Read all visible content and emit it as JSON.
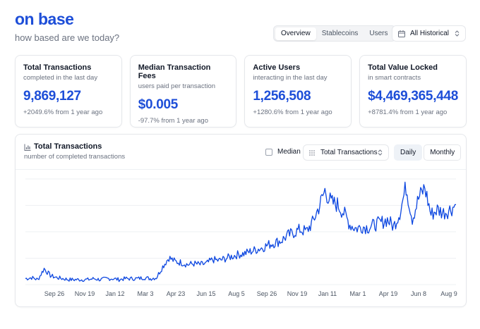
{
  "header": {
    "brand": "on base",
    "tagline": "how based are we today?"
  },
  "view_tabs": [
    {
      "label": "Overview",
      "active": true
    },
    {
      "label": "Stablecoins",
      "active": false
    },
    {
      "label": "Users",
      "active": false
    }
  ],
  "range_select": {
    "label": "All Historical",
    "icon": "calendar-icon"
  },
  "stats": [
    {
      "title": "Total Transactions",
      "subtitle": "completed in the last day",
      "value": "9,869,127",
      "delta": "+2049.6% from 1 year ago"
    },
    {
      "title": "Median Transaction Fees",
      "subtitle": "users paid per transaction",
      "value": "$0.005",
      "delta": "-97.7% from 1 year ago"
    },
    {
      "title": "Active Users",
      "subtitle": "interacting in the last day",
      "value": "1,256,508",
      "delta": "+1280.6% from 1 year ago"
    },
    {
      "title": "Total Value Locked",
      "subtitle": "in smart contracts",
      "value": "$4,469,365,448",
      "delta": "+8781.4% from 1 year ago"
    }
  ],
  "panel": {
    "title": "Total Transactions",
    "subtitle": "number of completed transactions",
    "icon": "bar-chart-icon",
    "median_label": "Median",
    "median_checked": false,
    "metric_select": "Total Transactions",
    "granularity": [
      {
        "label": "Daily",
        "active": true
      },
      {
        "label": "Monthly",
        "active": false
      }
    ]
  },
  "colors": {
    "accent": "#1d4ed8",
    "line": "#0d47e0",
    "muted_text": "#6b7280",
    "border": "#e5e7eb"
  },
  "chart_data": {
    "type": "line",
    "title": "Total Transactions",
    "xlabel": "",
    "ylabel": "",
    "y_axis_labels_shown": false,
    "grid": true,
    "x_ticks": [
      "Sep 26",
      "Nov 19",
      "Jan 12",
      "Mar 3",
      "Apr 23",
      "Jun 15",
      "Aug 5",
      "Sep 26",
      "Nov 19",
      "Jan 11",
      "Mar 1",
      "Apr 19",
      "Jun 8",
      "Aug 9"
    ],
    "series": [
      {
        "name": "Total Transactions",
        "note": "relative daily values, 0-1 scale (absolute axis not shown)",
        "values": [
          0.06,
          0.07,
          0.05,
          0.16,
          0.09,
          0.07,
          0.06,
          0.05,
          0.05,
          0.05,
          0.05,
          0.06,
          0.05,
          0.06,
          0.06,
          0.05,
          0.06,
          0.06,
          0.06,
          0.07,
          0.06,
          0.07,
          0.18,
          0.27,
          0.23,
          0.22,
          0.2,
          0.21,
          0.2,
          0.21,
          0.25,
          0.24,
          0.26,
          0.28,
          0.3,
          0.31,
          0.33,
          0.35,
          0.37,
          0.4,
          0.42,
          0.44,
          0.49,
          0.52,
          0.55,
          0.53,
          0.62,
          0.77,
          0.94,
          0.82,
          0.8,
          0.72,
          0.6,
          0.56,
          0.58,
          0.57,
          0.6,
          0.62,
          0.65,
          0.58,
          0.72,
          0.98,
          0.66,
          0.86,
          0.97,
          0.7,
          0.75,
          0.72,
          0.75,
          0.8
        ]
      }
    ]
  }
}
